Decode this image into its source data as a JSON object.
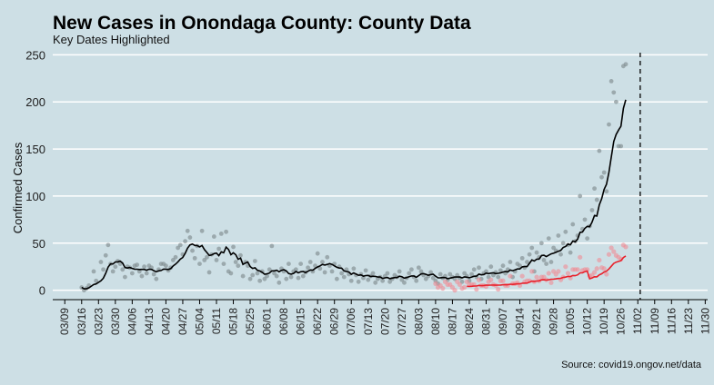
{
  "chart_data": {
    "type": "scatter",
    "title": "New Cases in Onondaga County: County Data",
    "subtitle": "Key Dates Highlighted",
    "ylabel": "Confirmed Cases",
    "xlabel": "",
    "caption": "Source: covid19.ongov.net/data",
    "ylim": [
      -10,
      260
    ],
    "xlim": [
      "2020-03-04",
      "2020-12-01"
    ],
    "yticks": [
      0,
      50,
      100,
      150,
      200,
      250
    ],
    "xticks": [
      "03/09",
      "03/16",
      "03/23",
      "03/30",
      "04/06",
      "04/13",
      "04/20",
      "04/27",
      "05/04",
      "05/11",
      "05/18",
      "05/25",
      "06/01",
      "06/08",
      "06/15",
      "06/22",
      "06/29",
      "07/06",
      "07/13",
      "07/20",
      "07/27",
      "08/03",
      "08/10",
      "08/17",
      "08/24",
      "08/31",
      "09/07",
      "09/14",
      "09/21",
      "09/28",
      "10/05",
      "10/12",
      "10/19",
      "10/26",
      "11/02",
      "11/09",
      "11/16",
      "11/23",
      "11/30"
    ],
    "grid": "horizontal",
    "vline": "2020-11-03",
    "colors": {
      "background": "#cddfe5",
      "grid": "#ffffff",
      "county": "#000000",
      "highlight": "#e8202a",
      "points": "#7f8c8f",
      "highlight_points": "#f08c95"
    },
    "series": [
      {
        "color": "#000000",
        "points": [
          [
            0,
            3
          ],
          [
            1,
            0
          ],
          [
            2,
            2
          ],
          [
            3,
            5
          ],
          [
            5,
            20
          ],
          [
            6,
            10
          ],
          [
            8,
            30
          ],
          [
            9,
            22
          ],
          [
            10,
            37
          ],
          [
            11,
            48
          ],
          [
            12,
            28
          ],
          [
            13,
            20
          ],
          [
            14,
            25
          ],
          [
            15,
            31
          ],
          [
            16,
            28
          ],
          [
            17,
            22
          ],
          [
            18,
            14
          ],
          [
            19,
            25
          ],
          [
            20,
            24
          ],
          [
            21,
            18
          ],
          [
            22,
            26
          ],
          [
            23,
            27
          ],
          [
            24,
            20
          ],
          [
            25,
            15
          ],
          [
            26,
            25
          ],
          [
            27,
            18
          ],
          [
            28,
            26
          ],
          [
            29,
            24
          ],
          [
            30,
            17
          ],
          [
            31,
            12
          ],
          [
            32,
            22
          ],
          [
            33,
            28
          ],
          [
            34,
            28
          ],
          [
            35,
            26
          ],
          [
            36,
            21
          ],
          [
            37,
            24
          ],
          [
            38,
            32
          ],
          [
            39,
            35
          ],
          [
            40,
            45
          ],
          [
            41,
            48
          ],
          [
            42,
            38
          ],
          [
            43,
            52
          ],
          [
            44,
            63
          ],
          [
            45,
            56
          ],
          [
            46,
            42
          ],
          [
            47,
            34
          ],
          [
            48,
            47
          ],
          [
            49,
            28
          ],
          [
            50,
            63
          ],
          [
            51,
            32
          ],
          [
            52,
            35
          ],
          [
            53,
            19
          ],
          [
            54,
            38
          ],
          [
            55,
            57
          ],
          [
            56,
            32
          ],
          [
            57,
            44
          ],
          [
            58,
            60
          ],
          [
            59,
            28
          ],
          [
            60,
            62
          ],
          [
            61,
            20
          ],
          [
            62,
            18
          ],
          [
            63,
            46
          ],
          [
            64,
            30
          ],
          [
            65,
            26
          ],
          [
            66,
            37
          ],
          [
            67,
            15
          ],
          [
            68,
            30
          ],
          [
            69,
            26
          ],
          [
            70,
            12
          ],
          [
            71,
            16
          ],
          [
            72,
            31
          ],
          [
            73,
            18
          ],
          [
            74,
            10
          ],
          [
            75,
            20
          ],
          [
            76,
            12
          ],
          [
            77,
            15
          ],
          [
            78,
            22
          ],
          [
            79,
            47
          ],
          [
            80,
            18
          ],
          [
            81,
            15
          ],
          [
            82,
            8
          ],
          [
            83,
            23
          ],
          [
            84,
            20
          ],
          [
            85,
            12
          ],
          [
            86,
            28
          ],
          [
            87,
            14
          ],
          [
            88,
            20
          ],
          [
            89,
            22
          ],
          [
            90,
            13
          ],
          [
            91,
            28
          ],
          [
            92,
            15
          ],
          [
            93,
            19
          ],
          [
            94,
            24
          ],
          [
            95,
            30
          ],
          [
            96,
            20
          ],
          [
            97,
            26
          ],
          [
            98,
            39
          ],
          [
            99,
            23
          ],
          [
            100,
            30
          ],
          [
            101,
            19
          ],
          [
            102,
            35
          ],
          [
            103,
            26
          ],
          [
            104,
            20
          ],
          [
            105,
            28
          ],
          [
            106,
            12
          ],
          [
            107,
            25
          ],
          [
            108,
            18
          ],
          [
            109,
            14
          ],
          [
            110,
            22
          ],
          [
            111,
            17
          ],
          [
            112,
            10
          ],
          [
            113,
            23
          ],
          [
            114,
            16
          ],
          [
            115,
            9
          ],
          [
            116,
            17
          ],
          [
            117,
            13
          ],
          [
            118,
            21
          ],
          [
            119,
            11
          ],
          [
            120,
            15
          ],
          [
            121,
            18
          ],
          [
            122,
            8
          ],
          [
            123,
            12
          ],
          [
            124,
            14
          ],
          [
            125,
            10
          ],
          [
            126,
            15
          ],
          [
            127,
            18
          ],
          [
            128,
            9
          ],
          [
            129,
            12
          ],
          [
            130,
            16
          ],
          [
            131,
            14
          ],
          [
            132,
            20
          ],
          [
            133,
            11
          ],
          [
            134,
            8
          ],
          [
            135,
            13
          ],
          [
            136,
            18
          ],
          [
            137,
            22
          ],
          [
            138,
            14
          ],
          [
            139,
            10
          ],
          [
            140,
            24
          ],
          [
            141,
            20
          ],
          [
            142,
            16
          ],
          [
            143,
            12
          ],
          [
            144,
            15
          ],
          [
            145,
            19
          ],
          [
            146,
            13
          ],
          [
            147,
            10
          ],
          [
            148,
            7
          ],
          [
            149,
            17
          ],
          [
            150,
            13
          ],
          [
            151,
            15
          ],
          [
            152,
            11
          ],
          [
            153,
            17
          ],
          [
            154,
            14
          ],
          [
            155,
            12
          ],
          [
            156,
            16
          ],
          [
            157,
            13
          ],
          [
            158,
            9
          ],
          [
            159,
            18
          ],
          [
            160,
            15
          ],
          [
            161,
            10
          ],
          [
            162,
            17
          ],
          [
            163,
            22
          ],
          [
            164,
            14
          ],
          [
            165,
            24
          ],
          [
            166,
            12
          ],
          [
            167,
            18
          ],
          [
            168,
            20
          ],
          [
            169,
            14
          ],
          [
            170,
            25
          ],
          [
            171,
            16
          ],
          [
            172,
            19
          ],
          [
            173,
            14
          ],
          [
            174,
            21
          ],
          [
            175,
            26
          ],
          [
            176,
            18
          ],
          [
            177,
            22
          ],
          [
            178,
            30
          ],
          [
            179,
            14
          ],
          [
            180,
            20
          ],
          [
            181,
            28
          ],
          [
            182,
            26
          ],
          [
            183,
            34
          ],
          [
            184,
            24
          ],
          [
            185,
            30
          ],
          [
            186,
            38
          ],
          [
            187,
            45
          ],
          [
            188,
            20
          ],
          [
            189,
            40
          ],
          [
            190,
            35
          ],
          [
            191,
            50
          ],
          [
            192,
            32
          ],
          [
            193,
            28
          ],
          [
            194,
            55
          ],
          [
            195,
            30
          ],
          [
            196,
            45
          ],
          [
            197,
            42
          ],
          [
            198,
            58
          ],
          [
            199,
            38
          ],
          [
            200,
            50
          ],
          [
            201,
            62
          ],
          [
            202,
            48
          ],
          [
            203,
            40
          ],
          [
            204,
            70
          ],
          [
            205,
            52
          ],
          [
            206,
            58
          ],
          [
            207,
            100
          ],
          [
            208,
            65
          ],
          [
            209,
            75
          ],
          [
            210,
            55
          ],
          [
            211,
            68
          ],
          [
            212,
            85
          ],
          [
            213,
            108
          ],
          [
            214,
            96
          ],
          [
            215,
            148
          ],
          [
            216,
            120
          ],
          [
            217,
            125
          ],
          [
            218,
            105
          ],
          [
            219,
            176
          ],
          [
            220,
            222
          ],
          [
            221,
            210
          ],
          [
            222,
            200
          ],
          [
            223,
            153
          ],
          [
            224,
            153
          ],
          [
            225,
            238
          ],
          [
            226,
            240
          ]
        ]
      }
    ]
  }
}
